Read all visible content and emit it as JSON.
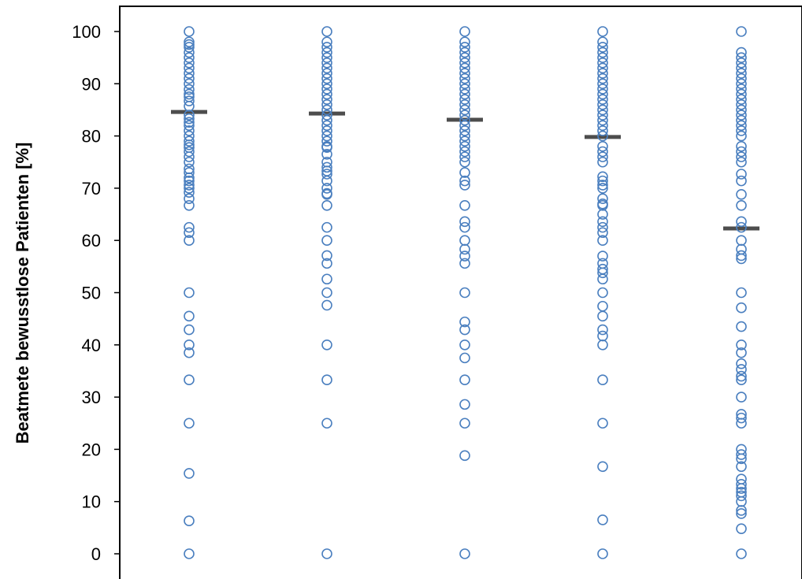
{
  "chart_data": {
    "type": "scatter",
    "ylabel": "Beatmete bewusstlose Patienten [%]",
    "xlabel": "",
    "ylim": [
      0,
      100
    ],
    "yticks": [
      0,
      10,
      20,
      30,
      40,
      50,
      60,
      70,
      80,
      90,
      100
    ],
    "grid": false,
    "series": [
      {
        "median": 84.6,
        "values": [
          100,
          98,
          97.5,
          97,
          96,
          95,
          94,
          93,
          92,
          91,
          90,
          88.9,
          88,
          87.5,
          86.7,
          85.7,
          84,
          83.3,
          82.6,
          82,
          81,
          80,
          79,
          78.3,
          77.8,
          77,
          76,
          75,
          73.7,
          73,
          72,
          71.4,
          70.6,
          70,
          69.2,
          68,
          66.7,
          62.5,
          61.5,
          60,
          50,
          45.5,
          42.9,
          40,
          38.5,
          33.3,
          25,
          15.4,
          6.3,
          0
        ]
      },
      {
        "median": 84.3,
        "values": [
          100,
          98,
          97,
          96,
          95,
          94,
          93,
          92,
          91,
          90,
          89,
          88,
          87,
          86,
          85,
          84,
          83,
          82,
          81,
          80,
          79,
          78,
          77.8,
          76.5,
          75,
          74,
          73.3,
          72.7,
          71.4,
          70,
          69,
          68.8,
          66.7,
          62.5,
          60,
          57.1,
          55.6,
          52.6,
          50,
          47.6,
          40,
          33.3,
          25,
          0
        ]
      },
      {
        "median": 83.1,
        "values": [
          100,
          98,
          97,
          96,
          95,
          94,
          93,
          92,
          91,
          90,
          89,
          88,
          87,
          86,
          85,
          84,
          83,
          82,
          81,
          80,
          79,
          78,
          77,
          76,
          75,
          73,
          71.4,
          70.6,
          66.7,
          63.6,
          62.5,
          60,
          58.3,
          57,
          55.6,
          50,
          44.4,
          42.9,
          40,
          37.5,
          33.3,
          28.6,
          25,
          18.8,
          0
        ]
      },
      {
        "median": 79.8,
        "values": [
          100,
          98,
          97,
          96,
          95,
          94,
          93,
          92,
          91,
          90,
          89,
          88,
          87,
          86,
          85,
          84,
          83,
          82,
          81,
          80,
          78,
          77,
          76,
          75,
          72.2,
          71.4,
          70.6,
          70,
          68,
          67,
          66.7,
          65,
          63.6,
          62.5,
          61.5,
          60,
          57,
          55.6,
          54.5,
          53.8,
          52.6,
          50,
          47.4,
          45.5,
          42.9,
          41.7,
          40,
          33.3,
          25,
          16.7,
          6.5,
          0
        ]
      },
      {
        "median": 62.3,
        "values": [
          100,
          96,
          95,
          94,
          93,
          92,
          91,
          90,
          89,
          88,
          87,
          86,
          85,
          84,
          83,
          82,
          81,
          80,
          78,
          77,
          76,
          75,
          72.7,
          71.4,
          68.8,
          66.7,
          63.6,
          62.5,
          60,
          58.3,
          57.1,
          56.5,
          50,
          47.1,
          43.5,
          40,
          38.5,
          36.4,
          35.3,
          34,
          33.3,
          30,
          26.7,
          26,
          25,
          20,
          19,
          18.2,
          16.7,
          14.3,
          13.3,
          12.5,
          11.8,
          11.1,
          10,
          8.3,
          7.7,
          4.8,
          0
        ]
      }
    ]
  }
}
